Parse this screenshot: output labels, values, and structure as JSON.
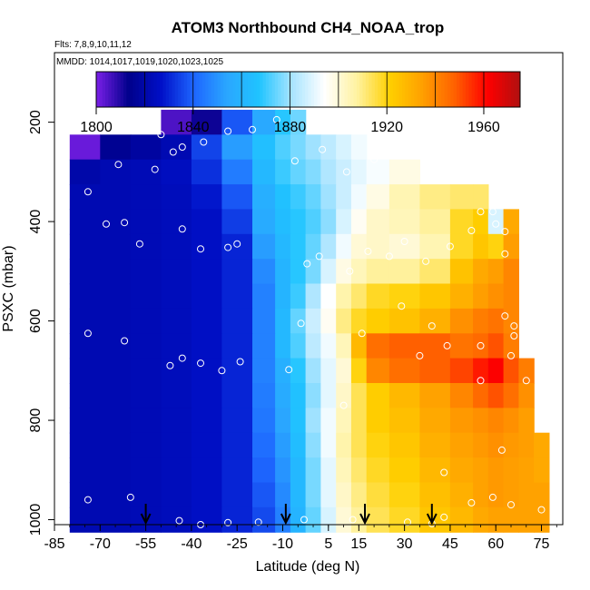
{
  "chart_data": {
    "type": "heatmap",
    "title": "ATOM3 Northbound CH4_NOAA_trop",
    "subtitle_flights": "Flts: 7,8,9,10,11,12",
    "subtitle_dates": "MMDD: 1014,1017,1019,1020,1023,1025",
    "xlabel": "Latitude (deg N)",
    "ylabel": "PSXC (mbar)",
    "xlim": [
      -85,
      82
    ],
    "ylim": [
      1010,
      60
    ],
    "x_ticks": [
      "-85",
      "-70",
      "-55",
      "-40",
      "-25",
      "-10",
      "5",
      "15",
      "30",
      "45",
      "60",
      "75"
    ],
    "y_ticks": [
      "200",
      "400",
      "600",
      "800",
      "1000"
    ],
    "colorbar": {
      "min": 1800,
      "max": 1975,
      "tick_labels": [
        "1800",
        "1840",
        "1880",
        "1920",
        "1960"
      ],
      "colors": [
        "#7b1fe8",
        "#00008b",
        "#0010c8",
        "#1e66ff",
        "#2aa6ff",
        "#20c4ff",
        "#a8e4ff",
        "#ffffff",
        "#fff2a0",
        "#ffd000",
        "#ffa000",
        "#ff6000",
        "#ff0000",
        "#b01010"
      ]
    },
    "latitude_bins": [
      -75,
      -65,
      -55,
      -45,
      -35,
      -25,
      -15,
      -10,
      -5,
      0,
      5,
      10,
      15,
      20,
      30,
      40,
      50,
      55,
      60,
      65,
      70,
      75
    ],
    "pressure_levels": [
      200,
      250,
      300,
      350,
      400,
      450,
      500,
      550,
      600,
      650,
      700,
      750,
      800,
      850,
      900,
      950,
      1000
    ],
    "ch4_values": [
      [
        null,
        null,
        null,
        1805,
        1812,
        1838,
        1855,
        1868,
        1875,
        null,
        null,
        null,
        null,
        null,
        null,
        null,
        null,
        null,
        null,
        null,
        null,
        null
      ],
      [
        1802,
        1815,
        1818,
        1822,
        1835,
        1852,
        1865,
        1872,
        1876,
        1880,
        1884,
        1888,
        1892,
        null,
        null,
        null,
        null,
        null,
        null,
        null,
        null,
        null
      ],
      [
        1820,
        1822,
        1823,
        1825,
        1832,
        1845,
        1862,
        1870,
        1874,
        1877,
        1882,
        1886,
        1890,
        1893,
        1898,
        null,
        null,
        null,
        null,
        null,
        null,
        null
      ],
      [
        1822,
        1822,
        1823,
        1824,
        1828,
        1838,
        1858,
        1866,
        1870,
        1874,
        1880,
        1886,
        1892,
        1898,
        1905,
        1910,
        1912,
        1912,
        null,
        null,
        null,
        null
      ],
      [
        1822,
        1822,
        1823,
        1824,
        1826,
        1834,
        1856,
        1864,
        1868,
        1872,
        1878,
        1888,
        1896,
        1902,
        1904,
        1908,
        1918,
        1922,
        1888,
        1932,
        null,
        null
      ],
      [
        1822,
        1822,
        1823,
        1824,
        1826,
        1830,
        1852,
        1862,
        1868,
        1874,
        1882,
        1892,
        1900,
        1902,
        1900,
        1905,
        1918,
        1924,
        1920,
        1935,
        null,
        null
      ],
      [
        1822,
        1822,
        1823,
        1824,
        1826,
        1830,
        1848,
        1860,
        1868,
        1876,
        1888,
        1898,
        1904,
        1908,
        1908,
        1912,
        1925,
        1932,
        1935,
        1940,
        null,
        null
      ],
      [
        1822,
        1822,
        1823,
        1824,
        1826,
        1830,
        1846,
        1860,
        1870,
        1882,
        1894,
        1906,
        1912,
        1918,
        1920,
        1924,
        1930,
        1935,
        1938,
        1940,
        null,
        null
      ],
      [
        1822,
        1822,
        1823,
        1824,
        1826,
        1830,
        1846,
        1862,
        1874,
        1886,
        1896,
        1910,
        1918,
        1922,
        1925,
        1930,
        1938,
        1942,
        1944,
        1940,
        null,
        null
      ],
      [
        1822,
        1822,
        1823,
        1824,
        1826,
        1830,
        1846,
        1862,
        1872,
        1884,
        1892,
        1904,
        1928,
        1945,
        1948,
        1948,
        1944,
        1946,
        1950,
        1942,
        null,
        null
      ],
      [
        1822,
        1822,
        1823,
        1824,
        1826,
        1830,
        1846,
        1858,
        1868,
        1880,
        1890,
        1900,
        1920,
        1940,
        1945,
        1948,
        1952,
        1958,
        1962,
        1950,
        1942,
        null
      ],
      [
        1822,
        1822,
        1823,
        1824,
        1826,
        1830,
        1845,
        1856,
        1866,
        1878,
        1890,
        1902,
        1914,
        1922,
        1928,
        1934,
        1940,
        1946,
        1950,
        1945,
        1938,
        null
      ],
      [
        1822,
        1822,
        1823,
        1824,
        1826,
        1830,
        1844,
        1854,
        1866,
        1880,
        1892,
        1904,
        1914,
        1922,
        1926,
        1932,
        1936,
        1938,
        1940,
        1938,
        1935,
        null
      ],
      [
        1822,
        1822,
        1823,
        1824,
        1826,
        1830,
        1842,
        1852,
        1864,
        1878,
        1892,
        1906,
        1914,
        1920,
        1924,
        1930,
        1934,
        1936,
        1938,
        1936,
        1935,
        1932
      ],
      [
        1822,
        1822,
        1823,
        1824,
        1826,
        1830,
        1840,
        1850,
        1862,
        1876,
        1890,
        1904,
        1912,
        1918,
        1922,
        1928,
        1932,
        1934,
        1936,
        1935,
        1934,
        1932
      ],
      [
        1822,
        1822,
        1823,
        1824,
        1826,
        1830,
        1838,
        1848,
        1862,
        1876,
        1890,
        1902,
        1910,
        1916,
        1920,
        1926,
        1930,
        1934,
        1936,
        1935,
        1934,
        1934
      ],
      [
        1822,
        1822,
        1823,
        1824,
        1826,
        1830,
        1836,
        1846,
        1860,
        1874,
        1888,
        1900,
        1908,
        1914,
        1918,
        1924,
        1928,
        1932,
        1934,
        1934,
        1934,
        1934
      ]
    ],
    "sample_points": [
      [
        -50,
        225
      ],
      [
        -46,
        260
      ],
      [
        -28,
        218
      ],
      [
        -20,
        215
      ],
      [
        -12,
        195
      ],
      [
        -36,
        240
      ],
      [
        -43,
        250
      ],
      [
        -64,
        285
      ],
      [
        -52,
        295
      ],
      [
        -6,
        278
      ],
      [
        3,
        255
      ],
      [
        11,
        300
      ],
      [
        20,
        275
      ],
      [
        28,
        252
      ],
      [
        38,
        220
      ],
      [
        -74,
        340
      ],
      [
        -68,
        405
      ],
      [
        -62,
        402
      ],
      [
        -43,
        415
      ],
      [
        -57,
        445
      ],
      [
        -37,
        455
      ],
      [
        -28,
        452
      ],
      [
        -25,
        445
      ],
      [
        -2,
        485
      ],
      [
        2,
        470
      ],
      [
        12,
        500
      ],
      [
        18,
        460
      ],
      [
        25,
        470
      ],
      [
        30,
        440
      ],
      [
        37,
        480
      ],
      [
        45,
        450
      ],
      [
        52,
        418
      ],
      [
        55,
        380
      ],
      [
        59,
        380
      ],
      [
        60,
        405
      ],
      [
        63,
        420
      ],
      [
        63,
        465
      ],
      [
        72,
        375
      ],
      [
        70,
        410
      ],
      [
        -74,
        625
      ],
      [
        -62,
        640
      ],
      [
        -47,
        690
      ],
      [
        -43,
        675
      ],
      [
        -37,
        685
      ],
      [
        -30,
        700
      ],
      [
        -24,
        682
      ],
      [
        -8,
        698
      ],
      [
        -4,
        605
      ],
      [
        10,
        770
      ],
      [
        16,
        625
      ],
      [
        35,
        670
      ],
      [
        44,
        650
      ],
      [
        55,
        650
      ],
      [
        63,
        590
      ],
      [
        66,
        610
      ],
      [
        66,
        630
      ],
      [
        70,
        660
      ],
      [
        65,
        670
      ],
      [
        70,
        720
      ],
      [
        55,
        720
      ],
      [
        39,
        610
      ],
      [
        29,
        570
      ],
      [
        -74,
        960
      ],
      [
        -60,
        955
      ],
      [
        -44,
        1002
      ],
      [
        -37,
        1010
      ],
      [
        -28,
        1006
      ],
      [
        -18,
        1005
      ],
      [
        -3,
        1000
      ],
      [
        13,
        1000
      ],
      [
        31,
        1005
      ],
      [
        39,
        1008
      ],
      [
        43,
        995
      ],
      [
        52,
        966
      ],
      [
        59,
        955
      ],
      [
        65,
        970
      ],
      [
        75,
        980
      ],
      [
        79,
        990
      ],
      [
        62,
        860
      ],
      [
        43,
        905
      ]
    ],
    "flight_arrows_latitude": [
      -55,
      -9,
      17,
      39
    ]
  }
}
